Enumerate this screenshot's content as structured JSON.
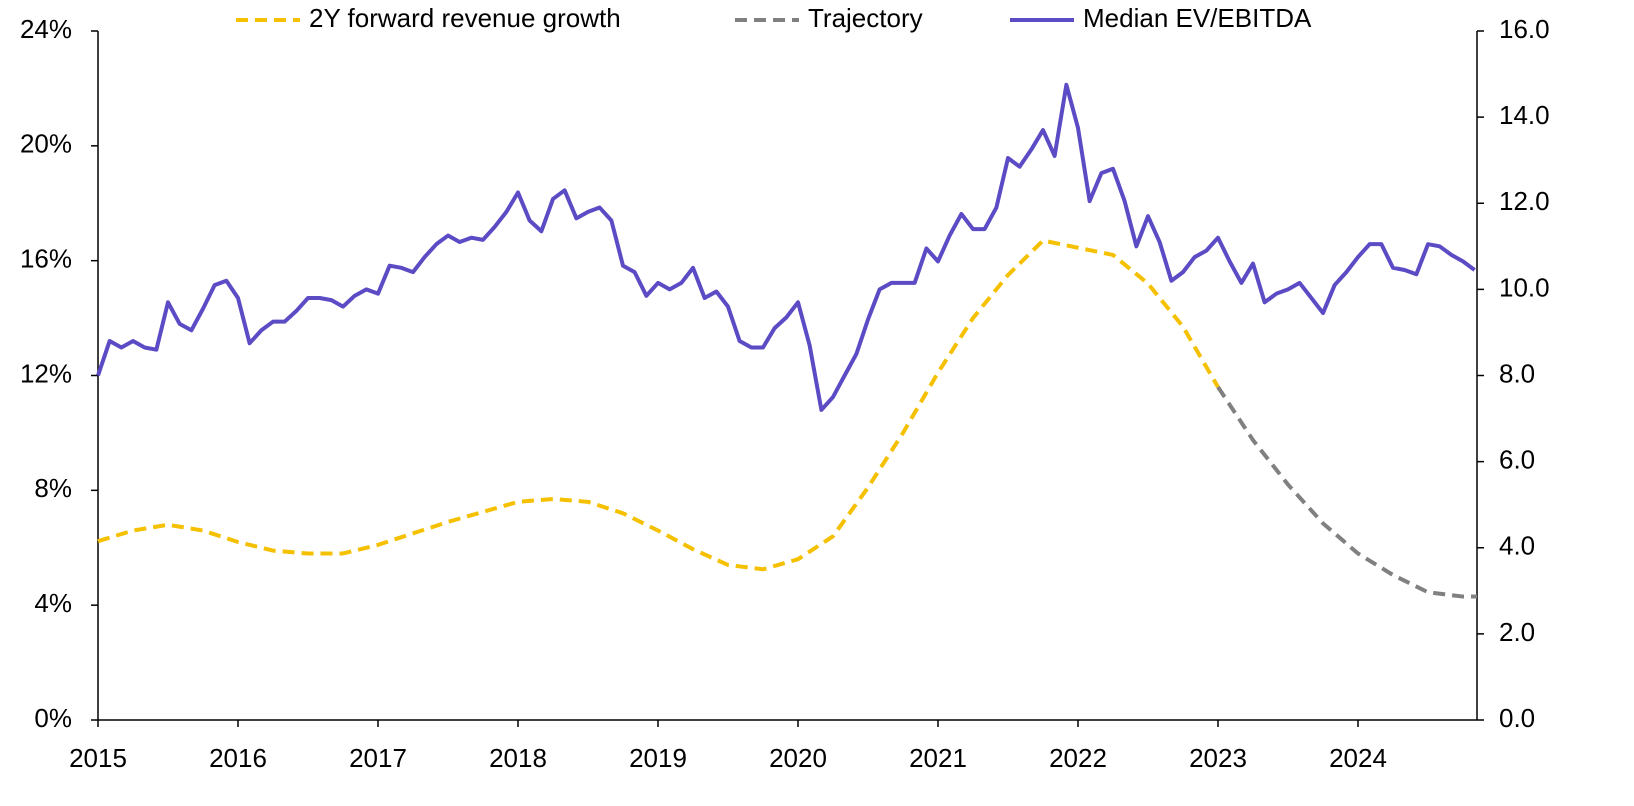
{
  "chart_data": {
    "type": "line",
    "xlim": [
      2015,
      2024.85
    ],
    "xticks": [
      2015,
      2016,
      2017,
      2018,
      2019,
      2020,
      2021,
      2022,
      2023,
      2024
    ],
    "ylim": [
      0,
      24
    ],
    "yticks": [
      {
        "value": 0,
        "label": "0%"
      },
      {
        "value": 4,
        "label": "4%"
      },
      {
        "value": 8,
        "label": "8%"
      },
      {
        "value": 12,
        "label": "12%"
      },
      {
        "value": 16,
        "label": "16%"
      },
      {
        "value": 20,
        "label": "20%"
      },
      {
        "value": 24,
        "label": "24%"
      }
    ],
    "y2lim": [
      0,
      16
    ],
    "y2ticks": [
      {
        "value": 0,
        "label": "0.0"
      },
      {
        "value": 2,
        "label": "2.0"
      },
      {
        "value": 4,
        "label": "4.0"
      },
      {
        "value": 6,
        "label": "6.0"
      },
      {
        "value": 8,
        "label": "8.0"
      },
      {
        "value": 10,
        "label": "10.0"
      },
      {
        "value": 12,
        "label": "12.0"
      },
      {
        "value": 14,
        "label": "14.0"
      },
      {
        "value": 16,
        "label": "16.0"
      }
    ],
    "legend": "top",
    "series": [
      {
        "name": "2Y forward revenue growth",
        "color": "#f5c000",
        "line_style": "dashed",
        "axis": "y",
        "x": [
          2015,
          2015.25,
          2015.5,
          2015.75,
          2016,
          2016.25,
          2016.5,
          2016.75,
          2017,
          2017.25,
          2017.5,
          2017.75,
          2018,
          2018.25,
          2018.5,
          2018.75,
          2019,
          2019.25,
          2019.5,
          2019.75,
          2020,
          2020.25,
          2020.5,
          2020.75,
          2021,
          2021.25,
          2021.5,
          2021.75,
          2022,
          2022.25,
          2022.5,
          2022.75,
          2023
        ],
        "values": [
          6.23,
          6.6,
          6.8,
          6.6,
          6.2,
          5.9,
          5.8,
          5.8,
          6.1,
          6.5,
          6.9,
          7.25,
          7.6,
          7.7,
          7.6,
          7.2,
          6.6,
          5.95,
          5.4,
          5.25,
          5.6,
          6.4,
          8.1,
          10.0,
          12.1,
          14.0,
          15.5,
          16.7,
          16.45,
          16.2,
          15.2,
          13.7,
          11.6
        ]
      },
      {
        "name": "Trajectory",
        "color": "#808080",
        "line_style": "dashed",
        "axis": "y",
        "x": [
          2023,
          2023.25,
          2023.5,
          2023.75,
          2024,
          2024.25,
          2024.5,
          2024.75,
          2024.85
        ],
        "values": [
          11.6,
          9.75,
          8.2,
          6.85,
          5.8,
          5.05,
          4.45,
          4.3,
          4.3
        ]
      },
      {
        "name": "Median EV/EBITDA",
        "color": "#5b4bc4",
        "line_style": "solid",
        "axis": "y2",
        "x": [
          2015,
          2015.083,
          2015.167,
          2015.25,
          2015.333,
          2015.417,
          2015.5,
          2015.583,
          2015.667,
          2015.75,
          2015.833,
          2015.917,
          2016,
          2016.083,
          2016.167,
          2016.25,
          2016.333,
          2016.417,
          2016.5,
          2016.583,
          2016.667,
          2016.75,
          2016.833,
          2016.917,
          2017,
          2017.083,
          2017.167,
          2017.25,
          2017.333,
          2017.417,
          2017.5,
          2017.583,
          2017.667,
          2017.75,
          2017.833,
          2017.917,
          2018,
          2018.083,
          2018.167,
          2018.25,
          2018.333,
          2018.417,
          2018.5,
          2018.583,
          2018.667,
          2018.75,
          2018.833,
          2018.917,
          2019,
          2019.083,
          2019.167,
          2019.25,
          2019.333,
          2019.417,
          2019.5,
          2019.583,
          2019.667,
          2019.75,
          2019.833,
          2019.917,
          2020,
          2020.083,
          2020.167,
          2020.25,
          2020.333,
          2020.417,
          2020.5,
          2020.583,
          2020.667,
          2020.75,
          2020.833,
          2020.917,
          2021,
          2021.083,
          2021.167,
          2021.25,
          2021.333,
          2021.417,
          2021.5,
          2021.583,
          2021.667,
          2021.75,
          2021.833,
          2021.917,
          2022,
          2022.083,
          2022.167,
          2022.25,
          2022.333,
          2022.417,
          2022.5,
          2022.583,
          2022.667,
          2022.75,
          2022.833,
          2022.917,
          2023,
          2023.083,
          2023.167,
          2023.25,
          2023.333,
          2023.417,
          2023.5,
          2023.583,
          2023.667,
          2023.75,
          2023.833,
          2023.917,
          2024,
          2024.083,
          2024.167,
          2024.25,
          2024.333,
          2024.417,
          2024.5,
          2024.583,
          2024.667,
          2024.75,
          2024.833
        ],
        "values": [
          8.0,
          8.8,
          8.65,
          8.8,
          8.65,
          8.6,
          9.7,
          9.2,
          9.05,
          9.55,
          10.1,
          10.2,
          9.8,
          8.75,
          9.05,
          9.25,
          9.25,
          9.5,
          9.8,
          9.8,
          9.75,
          9.6,
          9.85,
          10.0,
          9.9,
          10.55,
          10.5,
          10.4,
          10.75,
          11.05,
          11.25,
          11.1,
          11.2,
          11.15,
          11.45,
          11.8,
          12.25,
          11.6,
          11.35,
          12.1,
          12.3,
          11.65,
          11.8,
          11.9,
          11.6,
          10.55,
          10.4,
          9.85,
          10.15,
          10.0,
          10.15,
          10.5,
          9.8,
          9.95,
          9.6,
          8.8,
          8.65,
          8.65,
          9.1,
          9.35,
          9.7,
          8.7,
          7.2,
          7.5,
          8.0,
          8.5,
          9.3,
          10.0,
          10.15,
          10.15,
          10.15,
          10.95,
          10.65,
          11.25,
          11.75,
          11.4,
          11.4,
          11.9,
          13.05,
          12.85,
          13.25,
          13.7,
          13.1,
          14.75,
          13.75,
          12.05,
          12.7,
          12.8,
          12.05,
          11.0,
          11.7,
          11.1,
          10.2,
          10.4,
          10.75,
          10.9,
          11.2,
          10.65,
          10.15,
          10.6,
          9.7,
          9.9,
          10.0,
          10.15,
          9.8,
          9.45,
          10.1,
          10.4,
          10.75,
          11.05,
          11.05,
          10.5,
          10.45,
          10.35,
          11.05,
          11.0,
          10.8,
          10.65,
          10.45
        ]
      }
    ]
  }
}
